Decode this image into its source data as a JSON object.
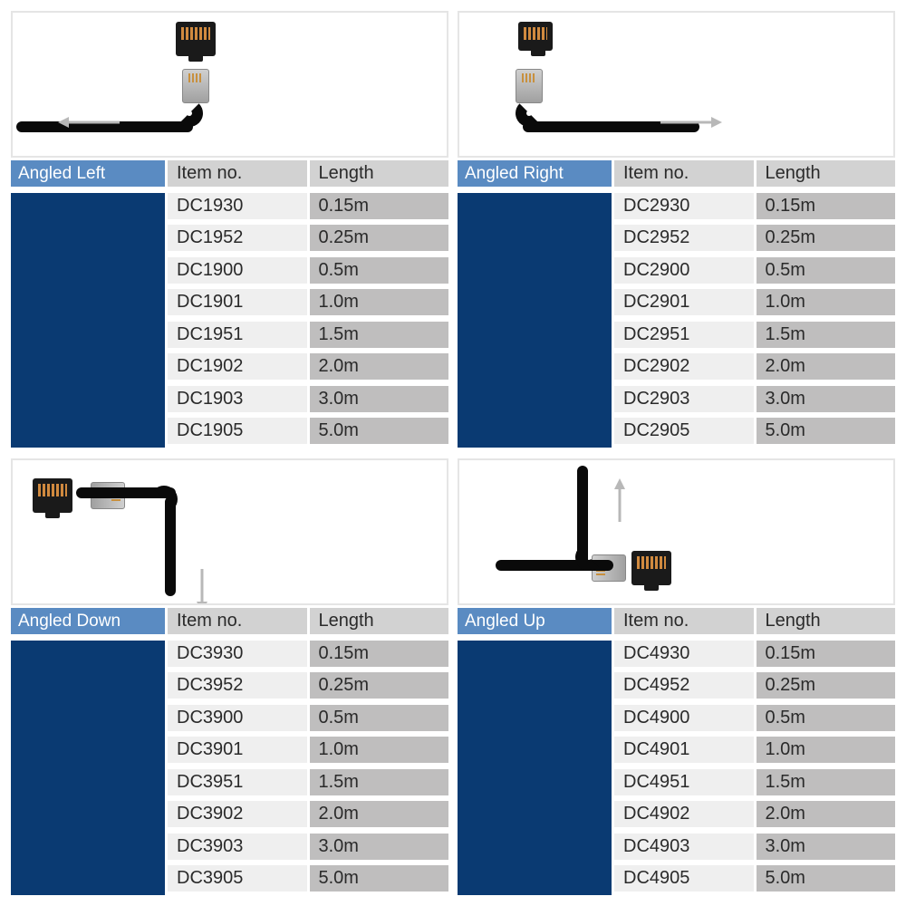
{
  "colors": {
    "title_bg": "#5a8bc2",
    "title_fg": "#ffffff",
    "title_rest_bg": "#0a3a72",
    "header_bg": "#d2d2d2",
    "item_bg": "#efefef",
    "length_bg": "#bfbebe",
    "cell_fg": "#2a2a2a",
    "img_border": "#e5e5e5",
    "arrow": "#b8b8b8"
  },
  "fonts": {
    "cell_fontsize": 20,
    "title_fontsize": 19
  },
  "columns": {
    "item": "Item no.",
    "length": "Length"
  },
  "panels": [
    {
      "key": "left",
      "title": "Angled Left",
      "arrow_dir": "left",
      "rows": [
        {
          "item": "DC1930",
          "length": "0.15m"
        },
        {
          "item": "DC1952",
          "length": "0.25m"
        },
        {
          "item": "DC1900",
          "length": "0.5m"
        },
        {
          "item": "DC1901",
          "length": "1.0m"
        },
        {
          "item": "DC1951",
          "length": "1.5m"
        },
        {
          "item": "DC1902",
          "length": "2.0m"
        },
        {
          "item": "DC1903",
          "length": "3.0m"
        },
        {
          "item": "DC1905",
          "length": "5.0m"
        }
      ]
    },
    {
      "key": "right",
      "title": "Angled Right",
      "arrow_dir": "right",
      "rows": [
        {
          "item": "DC2930",
          "length": "0.15m"
        },
        {
          "item": "DC2952",
          "length": "0.25m"
        },
        {
          "item": "DC2900",
          "length": "0.5m"
        },
        {
          "item": "DC2901",
          "length": "1.0m"
        },
        {
          "item": "DC2951",
          "length": "1.5m"
        },
        {
          "item": "DC2902",
          "length": "2.0m"
        },
        {
          "item": "DC2903",
          "length": "3.0m"
        },
        {
          "item": "DC2905",
          "length": "5.0m"
        }
      ]
    },
    {
      "key": "down",
      "title": "Angled Down",
      "arrow_dir": "down",
      "rows": [
        {
          "item": "DC3930",
          "length": "0.15m"
        },
        {
          "item": "DC3952",
          "length": "0.25m"
        },
        {
          "item": "DC3900",
          "length": "0.5m"
        },
        {
          "item": "DC3901",
          "length": "1.0m"
        },
        {
          "item": "DC3951",
          "length": "1.5m"
        },
        {
          "item": "DC3902",
          "length": "2.0m"
        },
        {
          "item": "DC3903",
          "length": "3.0m"
        },
        {
          "item": "DC3905",
          "length": "5.0m"
        }
      ]
    },
    {
      "key": "up",
      "title": "Angled Up",
      "arrow_dir": "up",
      "rows": [
        {
          "item": "DC4930",
          "length": "0.15m"
        },
        {
          "item": "DC4952",
          "length": "0.25m"
        },
        {
          "item": "DC4900",
          "length": "0.5m"
        },
        {
          "item": "DC4901",
          "length": "1.0m"
        },
        {
          "item": "DC4951",
          "length": "1.5m"
        },
        {
          "item": "DC4902",
          "length": "2.0m"
        },
        {
          "item": "DC4903",
          "length": "3.0m"
        },
        {
          "item": "DC4905",
          "length": "5.0m"
        }
      ]
    }
  ]
}
